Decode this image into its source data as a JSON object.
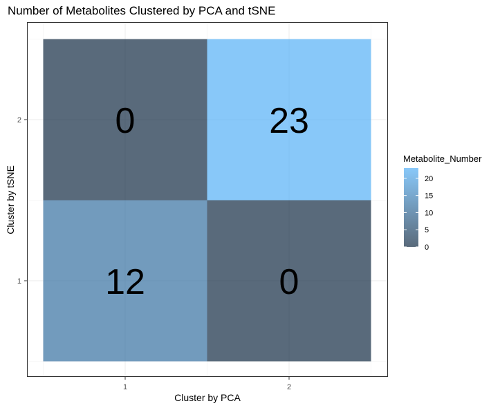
{
  "chart_data": {
    "type": "heatmap",
    "title": "Number of Metabolites Clustered by PCA and tSNE",
    "xlabel": "Cluster by PCA",
    "ylabel": "Cluster by tSNE",
    "x_categories": [
      "1",
      "2"
    ],
    "y_categories": [
      "1",
      "2"
    ],
    "cells": [
      {
        "x": "1",
        "y": "2",
        "value": 0
      },
      {
        "x": "2",
        "y": "2",
        "value": 23
      },
      {
        "x": "1",
        "y": "1",
        "value": 12
      },
      {
        "x": "2",
        "y": "1",
        "value": 0
      }
    ],
    "legend": {
      "title": "Metabolite_Number",
      "breaks": [
        0,
        5,
        10,
        15,
        20
      ],
      "range": [
        0,
        23
      ],
      "low_color": "#132B43",
      "high_color": "#56B1F7",
      "position": "right"
    },
    "tile_alpha": 0.7,
    "grid": true,
    "theme": "bw"
  }
}
